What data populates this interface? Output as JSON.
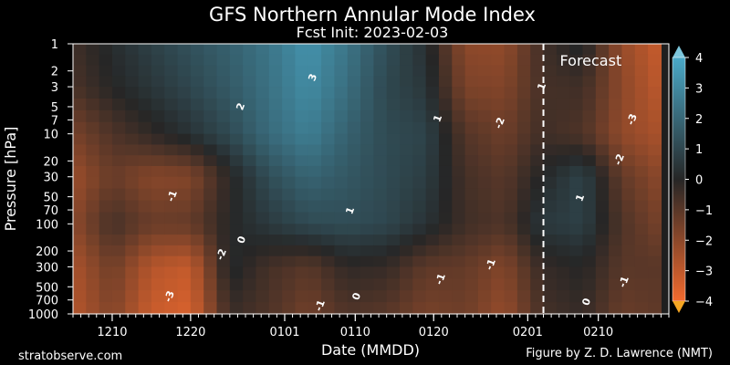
{
  "title": "GFS Northern Annular Mode Index",
  "subtitle": "Fcst Init: 2023-02-03",
  "footer_left": "stratobserve.com",
  "footer_right": "Figure by Z. D. Lawrence (NMT)",
  "colors": {
    "strong_negative": "#f26a2e",
    "neutral": "#262626",
    "strong_positive": "#4aa9c8",
    "forecast_line": "#ffffff"
  },
  "chart_data": {
    "type": "heatmap",
    "title": "GFS Northern Annular Mode Index",
    "subtitle": "Fcst Init: 2023-02-03",
    "xlabel": "Date (MMDD)",
    "ylabel": "Pressure [hPa]",
    "x_ticks": [
      "1210",
      "1220",
      "0101",
      "0110",
      "0120",
      "0201",
      "0210"
    ],
    "y_ticks": [
      "1",
      "2",
      "3",
      "5",
      "7",
      "10",
      "20",
      "30",
      "50",
      "70",
      "100",
      "200",
      "300",
      "500",
      "700",
      "1000"
    ],
    "y_scale": "log",
    "y_range": [
      1000,
      1
    ],
    "x_range": [
      "2022-12-05",
      "2023-02-19"
    ],
    "annotation": "Forecast",
    "forecast_start": "2023-02-03",
    "colorbar": {
      "ticks": [
        "4",
        "3",
        "2",
        "1",
        "0",
        "−1",
        "−2",
        "−3",
        "−4"
      ],
      "range": [
        -4,
        4
      ],
      "extend": "both"
    },
    "contour_labels": [
      "3",
      "2",
      "1",
      "1",
      "0",
      "0",
      "-1",
      "-1",
      "-1",
      "-1",
      "-2",
      "-2",
      "-2",
      "-3",
      "-3",
      "1",
      "1",
      "-1",
      "0"
    ],
    "dates": [
      "1205",
      "1210",
      "1215",
      "1220",
      "1225",
      "1230",
      "0104",
      "0109",
      "0114",
      "0119",
      "0124",
      "0129",
      "0203",
      "0208",
      "0213",
      "0218"
    ],
    "levels": [
      "1",
      "3",
      "10",
      "30",
      "100",
      "300",
      "1000"
    ],
    "values": [
      [
        -0.5,
        0.2,
        0.8,
        1.3,
        1.8,
        2.4,
        3.3,
        2.4,
        1.2,
        0.3,
        -2.0,
        -2.1,
        -0.5,
        0.2,
        -2.2,
        -3.2
      ],
      [
        -0.7,
        0.0,
        0.5,
        1.0,
        1.6,
        2.3,
        3.1,
        2.2,
        1.0,
        0.5,
        -1.7,
        -1.8,
        -0.6,
        -0.5,
        -2.0,
        -3.0
      ],
      [
        -1.6,
        -0.8,
        -0.2,
        0.4,
        1.1,
        2.1,
        2.7,
        1.8,
        1.1,
        0.9,
        -0.9,
        -1.4,
        -0.5,
        -0.8,
        -2.1,
        -2.6
      ],
      [
        -2.3,
        -1.3,
        -1.9,
        -1.8,
        -0.1,
        1.2,
        1.9,
        1.5,
        1.1,
        0.7,
        -0.6,
        -1.0,
        0.1,
        0.9,
        -1.2,
        -2.0
      ],
      [
        -2.0,
        -0.6,
        -1.3,
        -1.2,
        0.0,
        0.6,
        1.1,
        1.2,
        1.0,
        0.4,
        -0.5,
        -0.8,
        0.6,
        0.8,
        -0.8,
        -1.6
      ],
      [
        -2.6,
        -1.4,
        -2.8,
        -3.1,
        0.2,
        -0.6,
        -1.0,
        -0.2,
        -0.3,
        -1.1,
        -1.2,
        -1.8,
        -0.3,
        0.0,
        -1.0,
        -1.0
      ],
      [
        -2.8,
        -1.8,
        -3.2,
        -3.5,
        -0.4,
        -0.8,
        -1.5,
        -0.8,
        -1.0,
        -1.6,
        -1.4,
        -2.2,
        -0.6,
        -0.3,
        -1.3,
        -1.1
      ]
    ]
  }
}
